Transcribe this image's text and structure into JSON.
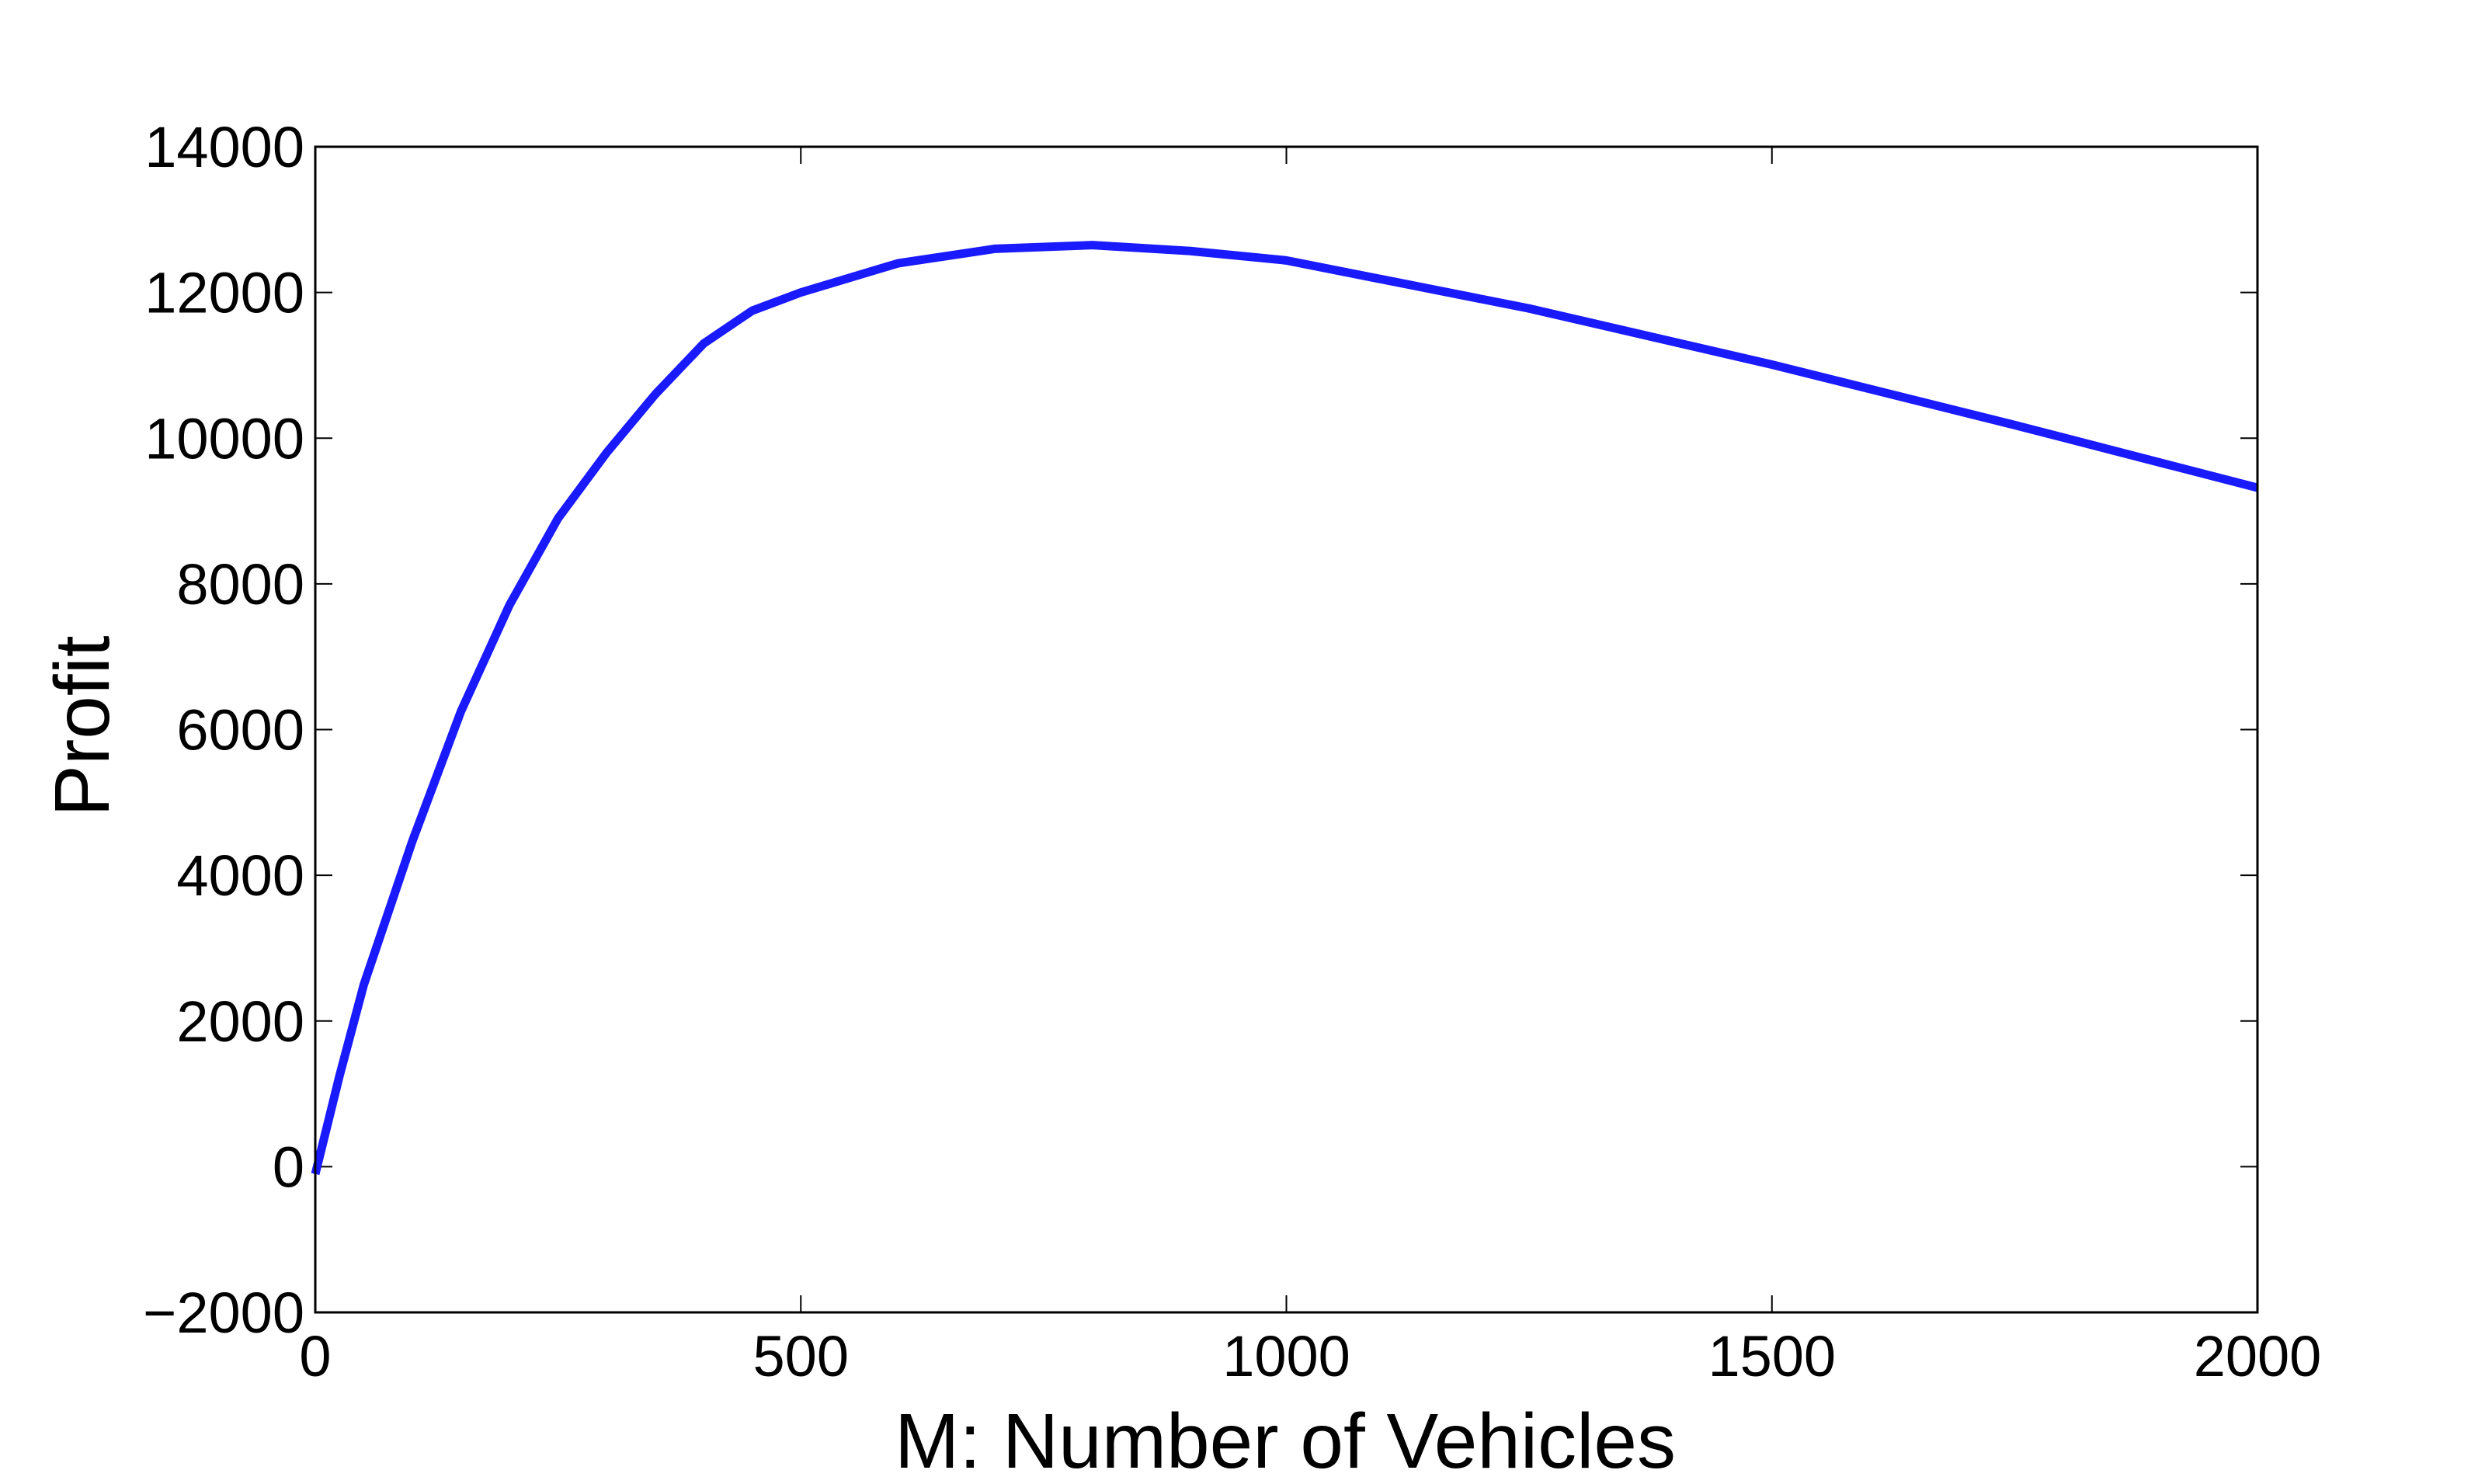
{
  "chart_data": {
    "type": "line",
    "xlabel": "M: Number of Vehicles",
    "ylabel": "Profit",
    "x": [
      0,
      25,
      50,
      100,
      150,
      200,
      250,
      300,
      350,
      400,
      450,
      500,
      600,
      700,
      800,
      900,
      1000,
      1250,
      1500,
      1750,
      2000
    ],
    "series": [
      {
        "name": "Profit",
        "color": "#1a1aff",
        "values": [
          -100,
          1250,
          2500,
          4470,
          6250,
          7710,
          8900,
          9800,
          10600,
          11300,
          11750,
          12000,
          12400,
          12600,
          12650,
          12570,
          12440,
          11780,
          11010,
          10180,
          9320
        ]
      }
    ],
    "xlim": [
      0,
      2000
    ],
    "xticks": [
      0,
      500,
      1000,
      1500,
      2000
    ],
    "ylim": [
      -2000,
      14000
    ],
    "yticks": [
      {
        "value": -2000,
        "label": "−2000"
      },
      0,
      2000,
      4000,
      6000,
      8000,
      10000,
      12000,
      14000
    ],
    "grid": false
  }
}
